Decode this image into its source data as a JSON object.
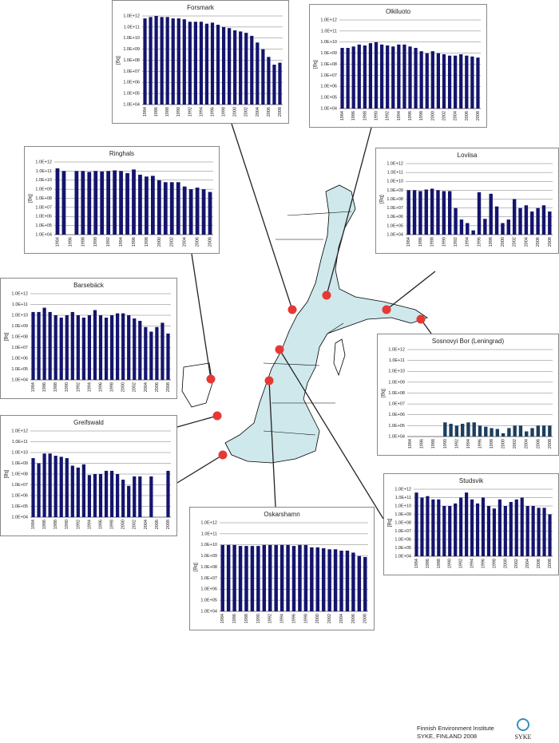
{
  "chart_data": [
    {
      "type": "bar",
      "title": "Forsmark",
      "ylabel": "[Bq]",
      "log_scale": true,
      "grid": true,
      "color": "#14146e",
      "ylim": [
        10000.0,
        1000000000000.0
      ],
      "yticks": [
        {
          "value": 10000.0,
          "label": "1.0E+04"
        },
        {
          "value": 100000.0,
          "label": "1.0E+05"
        },
        {
          "value": 1000000.0,
          "label": "1.0E+06"
        },
        {
          "value": 10000000.0,
          "label": "1.0E+07"
        },
        {
          "value": 100000000.0,
          "label": "1.0E+08"
        },
        {
          "value": 1000000000.0,
          "label": "1.0E+09"
        },
        {
          "value": 10000000000.0,
          "label": "1.0E+10"
        },
        {
          "value": 100000000000.0,
          "label": "1.0E+11"
        },
        {
          "value": 1000000000000.0,
          "label": "1.0E+12"
        }
      ],
      "categories": [
        "1984",
        null,
        "1986",
        null,
        "1988",
        null,
        "1990",
        null,
        "1992",
        null,
        "1994",
        null,
        "1996",
        null,
        "1998",
        null,
        "2000",
        null,
        "2002",
        null,
        "2004",
        null,
        "2006",
        null,
        "2008"
      ],
      "values": [
        600000000000.0,
        800000000000.0,
        1000000000000.0,
        800000000000.0,
        800000000000.0,
        600000000000.0,
        600000000000.0,
        500000000000.0,
        300000000000.0,
        300000000000.0,
        300000000000.0,
        200000000000.0,
        250000000000.0,
        160000000000.0,
        100000000000.0,
        80000000000.0,
        50000000000.0,
        40000000000.0,
        30000000000.0,
        16000000000.0,
        4000000000.0,
        1000000000.0,
        200000000.0,
        40000000.0,
        60000000.0
      ]
    },
    {
      "type": "bar",
      "title": "Olkiluoto",
      "ylabel": "[Bq]",
      "log_scale": true,
      "grid": true,
      "color": "#14146e",
      "ylim": [
        10000.0,
        1000000000000.0
      ],
      "yticks": [
        {
          "value": 10000.0,
          "label": "1.0E+04"
        },
        {
          "value": 100000.0,
          "label": "1.0E+05"
        },
        {
          "value": 1000000.0,
          "label": "1.0E+06"
        },
        {
          "value": 10000000.0,
          "label": "1.0E+07"
        },
        {
          "value": 100000000.0,
          "label": "1.0E+08"
        },
        {
          "value": 1000000000.0,
          "label": "1.0E+09"
        },
        {
          "value": 10000000000.0,
          "label": "1.0E+10"
        },
        {
          "value": 100000000000.0,
          "label": "1.0E+11"
        },
        {
          "value": 1000000000000.0,
          "label": "1.0E+12"
        }
      ],
      "categories": [
        "1984",
        null,
        "1986",
        null,
        "1988",
        null,
        "1990",
        null,
        "1992",
        null,
        "1994",
        null,
        "1996",
        null,
        "1998",
        null,
        "2000",
        null,
        "2002",
        null,
        "2004",
        null,
        "2006",
        null,
        "2008"
      ],
      "values": [
        3000000000.0,
        3000000000.0,
        4000000000.0,
        6000000000.0,
        5000000000.0,
        8000000000.0,
        10000000000.0,
        6000000000.0,
        5000000000.0,
        4000000000.0,
        6000000000.0,
        6000000000.0,
        4000000000.0,
        3000000000.0,
        1500000000.0,
        1000000000.0,
        1500000000.0,
        1000000000.0,
        800000000.0,
        600000000.0,
        600000000.0,
        800000000.0,
        600000000.0,
        500000000.0,
        400000000.0
      ]
    },
    {
      "type": "bar",
      "title": "Ringhals",
      "ylabel": "[Bq]",
      "log_scale": true,
      "grid": true,
      "color": "#14146e",
      "ylim": [
        10000.0,
        1000000000000.0
      ],
      "yticks": [
        {
          "value": 10000.0,
          "label": "1.0E+04"
        },
        {
          "value": 100000.0,
          "label": "1.0E+05"
        },
        {
          "value": 1000000.0,
          "label": "1.0E+06"
        },
        {
          "value": 10000000.0,
          "label": "1.0E+07"
        },
        {
          "value": 100000000.0,
          "label": "1.0E+08"
        },
        {
          "value": 1000000000.0,
          "label": "1.0E+09"
        },
        {
          "value": 10000000000.0,
          "label": "1.0E+10"
        },
        {
          "value": 100000000000.0,
          "label": "1.0E+11"
        },
        {
          "value": 1000000000000.0,
          "label": "1.0E+12"
        }
      ],
      "categories": [
        "1984",
        null,
        "1986",
        null,
        "1988",
        null,
        "1990",
        null,
        "1992",
        null,
        "1994",
        null,
        "1996",
        null,
        "1998",
        null,
        "2000",
        null,
        "2002",
        null,
        "2004",
        null,
        "2006",
        null,
        "2008"
      ],
      "values": [
        200000000000.0,
        100000000000.0,
        null,
        100000000000.0,
        100000000000.0,
        80000000000.0,
        100000000000.0,
        90000000000.0,
        100000000000.0,
        120000000000.0,
        100000000000.0,
        60000000000.0,
        150000000000.0,
        40000000000.0,
        25000000000.0,
        30000000000.0,
        10000000000.0,
        6000000000.0,
        6000000000.0,
        6000000000.0,
        2000000000.0,
        1000000000.0,
        1500000000.0,
        1000000000.0,
        500000000.0
      ]
    },
    {
      "type": "bar",
      "title": "Loviisa",
      "ylabel": "[Bq]",
      "log_scale": true,
      "grid": true,
      "color": "#14146e",
      "ylim": [
        10000.0,
        1000000000000.0
      ],
      "yticks": [
        {
          "value": 10000.0,
          "label": "1.0E+04"
        },
        {
          "value": 100000.0,
          "label": "1.0E+05"
        },
        {
          "value": 1000000.0,
          "label": "1.0E+06"
        },
        {
          "value": 10000000.0,
          "label": "1.0E+07"
        },
        {
          "value": 100000000.0,
          "label": "1.0E+08"
        },
        {
          "value": 1000000000.0,
          "label": "1.0E+09"
        },
        {
          "value": 10000000000.0,
          "label": "1.0E+10"
        },
        {
          "value": 100000000000.0,
          "label": "1.0E+11"
        },
        {
          "value": 1000000000000.0,
          "label": "1.0E+12"
        }
      ],
      "categories": [
        "1984",
        null,
        "1986",
        null,
        "1988",
        null,
        "1990",
        null,
        "1992",
        null,
        "1994",
        null,
        "1996",
        null,
        "1998",
        null,
        "2000",
        null,
        "2002",
        null,
        "2004",
        null,
        "2006",
        null,
        "2008"
      ],
      "values": [
        1000000000.0,
        1000000000.0,
        800000000.0,
        1200000000.0,
        1500000000.0,
        1000000000.0,
        800000000.0,
        800000000.0,
        10000000.0,
        500000.0,
        200000.0,
        30000.0,
        600000000.0,
        600000.0,
        400000000.0,
        15000000.0,
        200000.0,
        500000.0,
        100000000.0,
        10000000.0,
        20000000.0,
        4000000.0,
        10000000.0,
        20000000.0,
        4000000.0
      ]
    },
    {
      "type": "bar",
      "title": "Barsebäck",
      "ylabel": "[Bq]",
      "log_scale": true,
      "grid": true,
      "color": "#14146e",
      "ylim": [
        10000.0,
        1000000000000.0
      ],
      "yticks": [
        {
          "value": 10000.0,
          "label": "1.0E+04"
        },
        {
          "value": 100000.0,
          "label": "1.0E+05"
        },
        {
          "value": 1000000.0,
          "label": "1.0E+06"
        },
        {
          "value": 10000000.0,
          "label": "1.0E+07"
        },
        {
          "value": 100000000.0,
          "label": "1.0E+08"
        },
        {
          "value": 1000000000.0,
          "label": "1.0E+09"
        },
        {
          "value": 10000000000.0,
          "label": "1.0E+10"
        },
        {
          "value": 100000000000.0,
          "label": "1.0E+11"
        },
        {
          "value": 1000000000000.0,
          "label": "1.0E+12"
        }
      ],
      "categories": [
        "1984",
        null,
        "1986",
        null,
        "1988",
        null,
        "1990",
        null,
        "1992",
        null,
        "1994",
        null,
        "1996",
        null,
        "1998",
        null,
        "2000",
        null,
        "2002",
        null,
        "2004",
        null,
        "2006",
        null,
        "2008"
      ],
      "values": [
        20000000000.0,
        20000000000.0,
        50000000000.0,
        20000000000.0,
        10000000000.0,
        6000000000.0,
        10000000000.0,
        20000000000.0,
        10000000000.0,
        6000000000.0,
        10000000000.0,
        30000000000.0,
        10000000000.0,
        6000000000.0,
        10000000000.0,
        15000000000.0,
        15000000000.0,
        10000000000.0,
        5000000000.0,
        3000000000.0,
        800000000.0,
        300000000.0,
        800000000.0,
        2000000000.0,
        200000000.0
      ]
    },
    {
      "type": "bar",
      "title": "Sosnovyi Bor (Leningrad)",
      "ylabel": "[Bq]",
      "log_scale": true,
      "grid": true,
      "color": "#1c3f5f",
      "ylim": [
        10000.0,
        1000000000000.0
      ],
      "yticks": [
        {
          "value": 10000.0,
          "label": "1.0E+04"
        },
        {
          "value": 100000.0,
          "label": "1.0E+05"
        },
        {
          "value": 1000000.0,
          "label": "1.0E+06"
        },
        {
          "value": 10000000.0,
          "label": "1.0E+07"
        },
        {
          "value": 100000000.0,
          "label": "1.0E+08"
        },
        {
          "value": 1000000000.0,
          "label": "1.0E+09"
        },
        {
          "value": 10000000000.0,
          "label": "1.0E+10"
        },
        {
          "value": 100000000000.0,
          "label": "1.0E+11"
        },
        {
          "value": 1000000000000.0,
          "label": "1.0E+12"
        }
      ],
      "categories": [
        "1984",
        null,
        "1986",
        null,
        "1988",
        null,
        "1990",
        null,
        "1992",
        null,
        "1994",
        null,
        "1996",
        null,
        "1998",
        null,
        "2000",
        null,
        "2002",
        null,
        "2004",
        null,
        "2006",
        null,
        "2008"
      ],
      "values": [
        null,
        null,
        null,
        null,
        null,
        null,
        200000.0,
        150000.0,
        100000.0,
        150000.0,
        200000.0,
        200000.0,
        100000.0,
        80000.0,
        60000.0,
        50000.0,
        20000.0,
        60000.0,
        100000.0,
        100000.0,
        30000.0,
        60000.0,
        100000.0,
        100000.0,
        100000.0
      ]
    },
    {
      "type": "bar",
      "title": "Greifswald",
      "ylabel": "[Bq]",
      "log_scale": true,
      "grid": true,
      "color": "#14146e",
      "ylim": [
        10000.0,
        1000000000000.0
      ],
      "yticks": [
        {
          "value": 10000.0,
          "label": "1.0E+04"
        },
        {
          "value": 100000.0,
          "label": "1.0E+05"
        },
        {
          "value": 1000000.0,
          "label": "1.0E+06"
        },
        {
          "value": 10000000.0,
          "label": "1.0E+07"
        },
        {
          "value": 100000000.0,
          "label": "1.0E+08"
        },
        {
          "value": 1000000000.0,
          "label": "1.0E+09"
        },
        {
          "value": 10000000000.0,
          "label": "1.0E+10"
        },
        {
          "value": 100000000000.0,
          "label": "1.0E+11"
        },
        {
          "value": 1000000000000.0,
          "label": "1.0E+12"
        }
      ],
      "categories": [
        "1984",
        null,
        "1986",
        null,
        "1988",
        null,
        "1990",
        null,
        "1992",
        null,
        "1994",
        null,
        "1996",
        null,
        "1998",
        null,
        "2000",
        null,
        "2002",
        null,
        "2004",
        null,
        "2006",
        null,
        "2008"
      ],
      "values": [
        3000000000.0,
        1000000000.0,
        8000000000.0,
        8000000000.0,
        5000000000.0,
        4000000000.0,
        3000000000.0,
        600000000.0,
        400000000.0,
        800000000.0,
        80000000.0,
        100000000.0,
        100000000.0,
        200000000.0,
        200000000.0,
        100000000.0,
        30000000.0,
        8000000.0,
        60000000.0,
        60000000.0,
        null,
        60000000.0,
        null,
        null,
        200000000.0
      ]
    },
    {
      "type": "bar",
      "title": "Studsvik",
      "ylabel": "[Bq]",
      "log_scale": true,
      "grid": true,
      "color": "#14146e",
      "ylim": [
        10000.0,
        1000000000000.0
      ],
      "yticks": [
        {
          "value": 10000.0,
          "label": "1.0E+04"
        },
        {
          "value": 100000.0,
          "label": "1.0E+05"
        },
        {
          "value": 1000000.0,
          "label": "1.0E+06"
        },
        {
          "value": 10000000.0,
          "label": "1.0E+07"
        },
        {
          "value": 100000000.0,
          "label": "1.0E+08"
        },
        {
          "value": 1000000000.0,
          "label": "1.0E+09"
        },
        {
          "value": 10000000000.0,
          "label": "1.0E+10"
        },
        {
          "value": 100000000000.0,
          "label": "1.0E+11"
        },
        {
          "value": 1000000000000.0,
          "label": "1.0E+12"
        }
      ],
      "categories": [
        "1984",
        null,
        "1986",
        null,
        "1988",
        null,
        "1990",
        null,
        "1992",
        null,
        "1994",
        null,
        "1996",
        null,
        "1998",
        null,
        "2000",
        null,
        "2002",
        null,
        "2004",
        null,
        "2006",
        null,
        "2008"
      ],
      "values": [
        400000000000.0,
        100000000000.0,
        150000000000.0,
        60000000000.0,
        60000000000.0,
        10000000000.0,
        10000000000.0,
        20000000000.0,
        100000000000.0,
        400000000000.0,
        60000000000.0,
        20000000000.0,
        100000000000.0,
        10000000000.0,
        5000000000.0,
        60000000000.0,
        10000000000.0,
        30000000000.0,
        60000000000.0,
        100000000000.0,
        10000000000.0,
        10000000000.0,
        6000000000.0,
        6000000000.0,
        1000000000.0
      ]
    },
    {
      "type": "bar",
      "title": "Oskarshamn",
      "ylabel": "[Bq]",
      "log_scale": true,
      "grid": true,
      "color": "#14146e",
      "ylim": [
        10000.0,
        1000000000000.0
      ],
      "yticks": [
        {
          "value": 10000.0,
          "label": "1.0E+04"
        },
        {
          "value": 100000.0,
          "label": "1.0E+05"
        },
        {
          "value": 1000000.0,
          "label": "1.0E+06"
        },
        {
          "value": 10000000.0,
          "label": "1.0E+07"
        },
        {
          "value": 100000000.0,
          "label": "1.0E+08"
        },
        {
          "value": 1000000000.0,
          "label": "1.0E+09"
        },
        {
          "value": 10000000000.0,
          "label": "1.0E+10"
        },
        {
          "value": 100000000000.0,
          "label": "1.0E+11"
        },
        {
          "value": 1000000000000.0,
          "label": "1.0E+12"
        }
      ],
      "categories": [
        "1984",
        null,
        "1986",
        null,
        "1988",
        null,
        "1990",
        null,
        "1992",
        null,
        "1994",
        null,
        "1996",
        null,
        "1998",
        null,
        "2000",
        null,
        "2002",
        null,
        "2004",
        null,
        "2006",
        null,
        "2008"
      ],
      "values": [
        10000000000.0,
        10000000000.0,
        10000000000.0,
        8000000000.0,
        8000000000.0,
        8000000000.0,
        8000000000.0,
        10000000000.0,
        10000000000.0,
        10000000000.0,
        10000000000.0,
        10000000000.0,
        8000000000.0,
        10000000000.0,
        10000000000.0,
        6000000000.0,
        6000000000.0,
        5000000000.0,
        4000000000.0,
        4000000000.0,
        3000000000.0,
        3000000000.0,
        2000000000.0,
        1000000000.0,
        800000000.0
      ]
    }
  ],
  "footer": {
    "institute": "Finnish Environment Institute",
    "credit": "SYKE, FINLAND 2008",
    "logo": "SYKE"
  }
}
